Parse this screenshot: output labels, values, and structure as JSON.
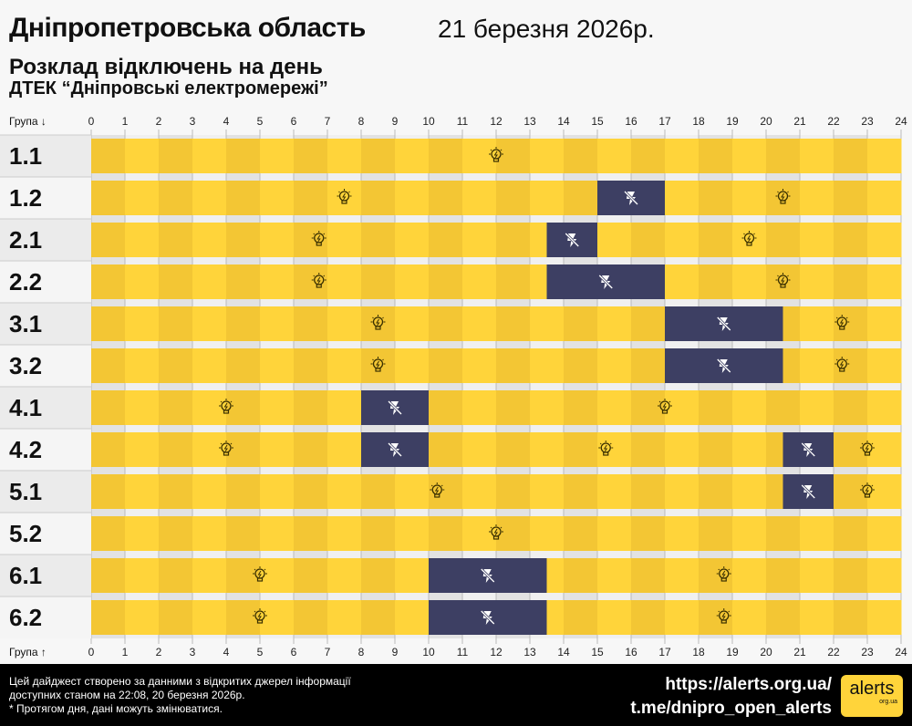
{
  "header": {
    "title": "Дніпропетровська область",
    "date": "21 березня 2026р.",
    "subtitle": "Розклад відключень на день",
    "provider": "ДТЕК “Дніпровські електромережі”"
  },
  "colors": {
    "on_light": "#ffd43a",
    "on_dark": "#f3c634",
    "off": "#3d3f63",
    "icon_on": "#3a3000",
    "icon_off": "#ffffff"
  },
  "chart_data": {
    "type": "timeline",
    "top_axis_label": "Група ↓",
    "bottom_axis_label": "Група ↑",
    "x_ticks": [
      "0",
      "1",
      "2",
      "3",
      "4",
      "5",
      "6",
      "7",
      "8",
      "9",
      "10",
      "11",
      "12",
      "13",
      "14",
      "15",
      "16",
      "17",
      "18",
      "19",
      "20",
      "21",
      "22",
      "23",
      "24"
    ],
    "xlim": [
      0,
      24
    ],
    "groups": [
      {
        "name": "1.1",
        "outages": []
      },
      {
        "name": "1.2",
        "outages": [
          [
            15,
            17
          ]
        ]
      },
      {
        "name": "2.1",
        "outages": [
          [
            13.5,
            15
          ]
        ]
      },
      {
        "name": "2.2",
        "outages": [
          [
            13.5,
            17
          ]
        ]
      },
      {
        "name": "3.1",
        "outages": [
          [
            17,
            20.5
          ]
        ]
      },
      {
        "name": "3.2",
        "outages": [
          [
            17,
            20.5
          ]
        ]
      },
      {
        "name": "4.1",
        "outages": [
          [
            8,
            10
          ]
        ]
      },
      {
        "name": "4.2",
        "outages": [
          [
            8,
            10
          ],
          [
            20.5,
            22
          ]
        ]
      },
      {
        "name": "5.1",
        "outages": [
          [
            20.5,
            22
          ]
        ]
      },
      {
        "name": "5.2",
        "outages": []
      },
      {
        "name": "6.1",
        "outages": [
          [
            10,
            13.5
          ]
        ]
      },
      {
        "name": "6.2",
        "outages": [
          [
            10,
            13.5
          ]
        ]
      }
    ],
    "legend": {
      "on_icon": "lightbulb-icon",
      "off_icon": "power-off-lightning-icon"
    }
  },
  "footer": {
    "note1": "Цей дайджест створено за данними з відкритих джерел інформації",
    "note2": "доступних станом на 22:08, 20 березня 2026р.",
    "note3": "* Протягом дня, дані можуть змінюватися.",
    "link1": "https://alerts.org.ua/",
    "link2": "t.me/dnipro_open_alerts",
    "logo": "alerts",
    "logo_sub": "org.ua"
  }
}
